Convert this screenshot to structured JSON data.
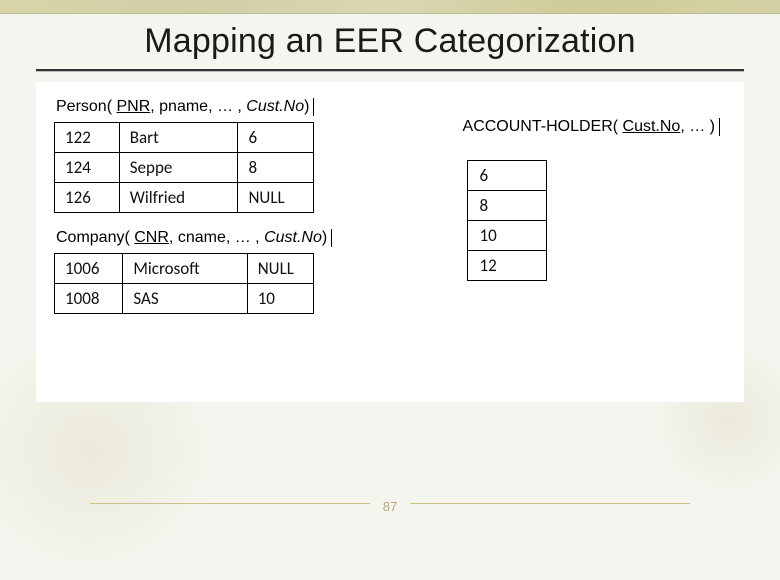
{
  "title": "Mapping an EER Categorization",
  "page_number": "87",
  "colors": {
    "background": "#f5f5f0",
    "top_band": "#d6d2a2",
    "rule_dark": "#333333",
    "table_border": "#000000",
    "footer_line": "#c9c28c",
    "page_num": "#b4a86e",
    "content_bg": "#ffffff"
  },
  "typography": {
    "title_fontsize": 34,
    "body_fontsize": 17,
    "schema_fontsize": 16,
    "font_family": "Arial"
  },
  "person": {
    "schema_prefix": "Person( ",
    "schema_key": "PNR",
    "schema_mid": ", pname, … , ",
    "schema_fk": "Cust.No",
    "schema_suffix": ")",
    "rows": [
      {
        "pnr": "122",
        "pname": "Bart",
        "custno": "6"
      },
      {
        "pnr": "124",
        "pname": "Seppe",
        "custno": "8"
      },
      {
        "pnr": "126",
        "pname": "Wilfried",
        "custno": "NULL"
      }
    ]
  },
  "company": {
    "schema_prefix": "Company( ",
    "schema_key": "CNR",
    "schema_mid": ", cname, … , ",
    "schema_fk": "Cust.No",
    "schema_suffix": ")",
    "rows": [
      {
        "cnr": "1006",
        "cname": "Microsoft",
        "custno": "NULL"
      },
      {
        "cnr": "1008",
        "cname": "SAS",
        "custno": "10"
      }
    ]
  },
  "account_holder": {
    "schema_prefix": "ACCOUNT-HOLDER( ",
    "schema_key": "Cust.No",
    "schema_suffix": ", … )",
    "rows": [
      {
        "custno": "6"
      },
      {
        "custno": "8"
      },
      {
        "custno": "10"
      },
      {
        "custno": "12"
      }
    ]
  }
}
